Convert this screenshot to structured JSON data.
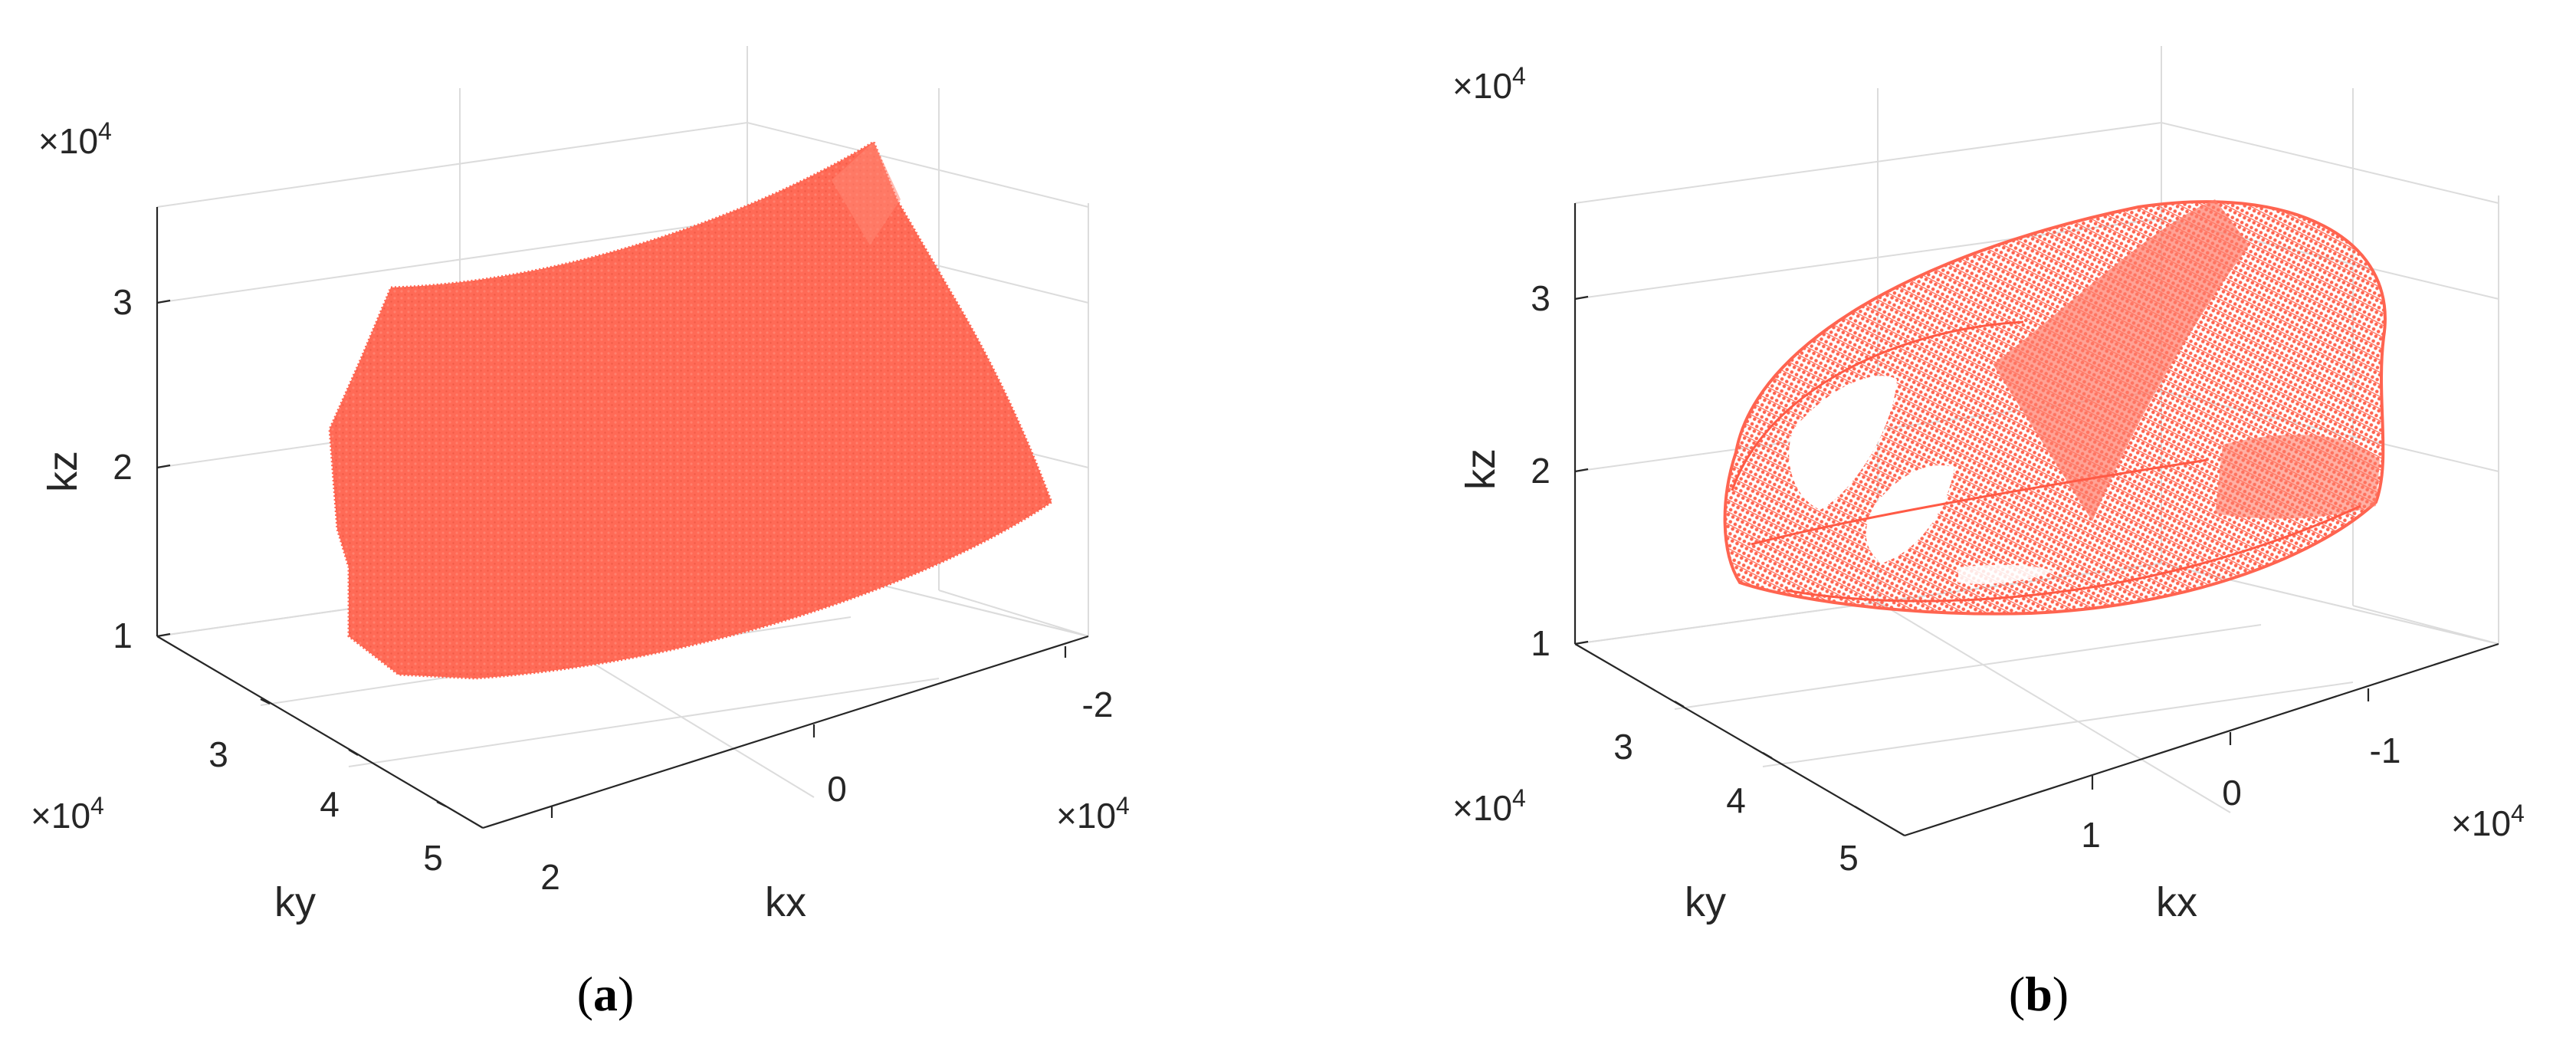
{
  "style": {
    "point_color": "#ff6450",
    "axis_color": "#262626",
    "grid_color": "#dcdcdc"
  },
  "chart_data": [
    {
      "type": "scatter",
      "subtype": "3d-point-cloud",
      "panel_label_open": "(",
      "panel_label_letter": "a",
      "panel_label_close": ")",
      "xlabel": "kx",
      "ylabel": "ky",
      "zlabel": "kz",
      "x_ticks": [
        "2",
        "0",
        "-2"
      ],
      "y_ticks": [
        "3",
        "4",
        "5"
      ],
      "z_ticks": [
        "1",
        "2",
        "3"
      ],
      "x_exponent_base": "×10",
      "x_exponent_power": "4",
      "y_exponent_base": "×10",
      "y_exponent_power": "4",
      "z_exponent_base": "×10",
      "z_exponent_power": "4",
      "xlim": [
        25000,
        -25000
      ],
      "ylim": [
        25000,
        55000
      ],
      "zlim": [
        9000,
        35000
      ],
      "grid": true,
      "description_shape": "filled curved sheet (dense k-space samples)",
      "series": [
        {
          "color": "#ff6450",
          "marker": "point",
          "extent_x": [
            22000,
            -24000
          ],
          "extent_y": [
            26000,
            52000
          ],
          "extent_z": [
            9500,
            35500
          ]
        }
      ]
    },
    {
      "type": "scatter",
      "subtype": "3d-point-cloud",
      "panel_label_open": "(",
      "panel_label_letter": "b",
      "panel_label_close": ")",
      "xlabel": "kx",
      "ylabel": "ky",
      "zlabel": "kz",
      "x_ticks": [
        "1",
        "0",
        "-1"
      ],
      "y_ticks": [
        "3",
        "4",
        "5"
      ],
      "z_ticks": [
        "1",
        "2",
        "3"
      ],
      "x_exponent_base": "×10",
      "x_exponent_power": "4",
      "y_exponent_base": "×10",
      "y_exponent_power": "4",
      "z_exponent_base": "×10",
      "z_exponent_power": "4",
      "xlim": [
        20000,
        -20000
      ],
      "ylim": [
        25000,
        55000
      ],
      "zlim": [
        9000,
        35000
      ],
      "grid": true,
      "description_shape": "shell-like lattice of point rings (sparse k-space samples)",
      "series": [
        {
          "color": "#ff6450",
          "marker": "point",
          "extent_x": [
            15000,
            -18000
          ],
          "extent_y": [
            26000,
            52000
          ],
          "extent_z": [
            12000,
            33000
          ]
        }
      ]
    }
  ]
}
